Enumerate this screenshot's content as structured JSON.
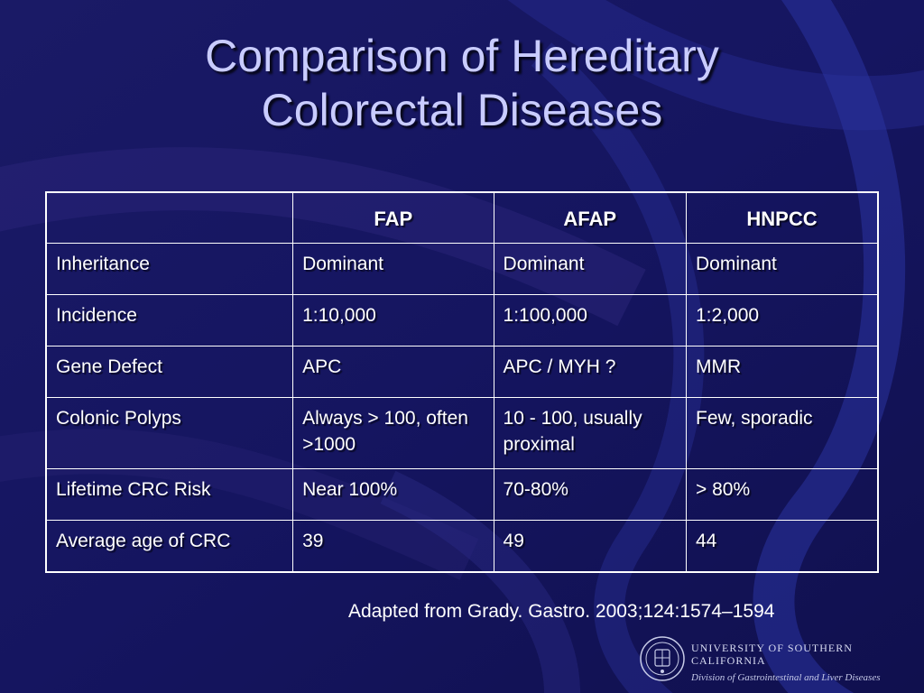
{
  "slide": {
    "title_lines": [
      "Comparison of Hereditary",
      "Colorectal Diseases"
    ]
  },
  "table": {
    "headers": [
      "",
      "FAP",
      "AFAP",
      "HNPCC"
    ],
    "rows": [
      [
        "Inheritance",
        "Dominant",
        "Dominant",
        "Dominant"
      ],
      [
        "Incidence",
        "1:10,000",
        "1:100,000",
        "1:2,000"
      ],
      [
        "Gene Defect",
        "APC",
        "APC / MYH ?",
        "MMR"
      ],
      [
        "Colonic Polyps",
        "Always > 100, often >1000",
        "10 - 100, usually proximal",
        "Few, sporadic"
      ],
      [
        "Lifetime CRC Risk",
        "Near 100%",
        "70-80%",
        "> 80%"
      ],
      [
        "Average age of CRC",
        "39",
        "49",
        "44"
      ]
    ]
  },
  "source": "Adapted from Grady. Gastro. 2003;124:1574–1594",
  "logo": {
    "university": "UNIVERSITY OF SOUTHERN CALIFORNIA",
    "division": "Division of Gastrointestinal and Liver Diseases",
    "seal_icon": "usc-seal-icon"
  },
  "colors": {
    "background": "#14145a",
    "title": "#c9ccff",
    "text": "#ffffff"
  }
}
